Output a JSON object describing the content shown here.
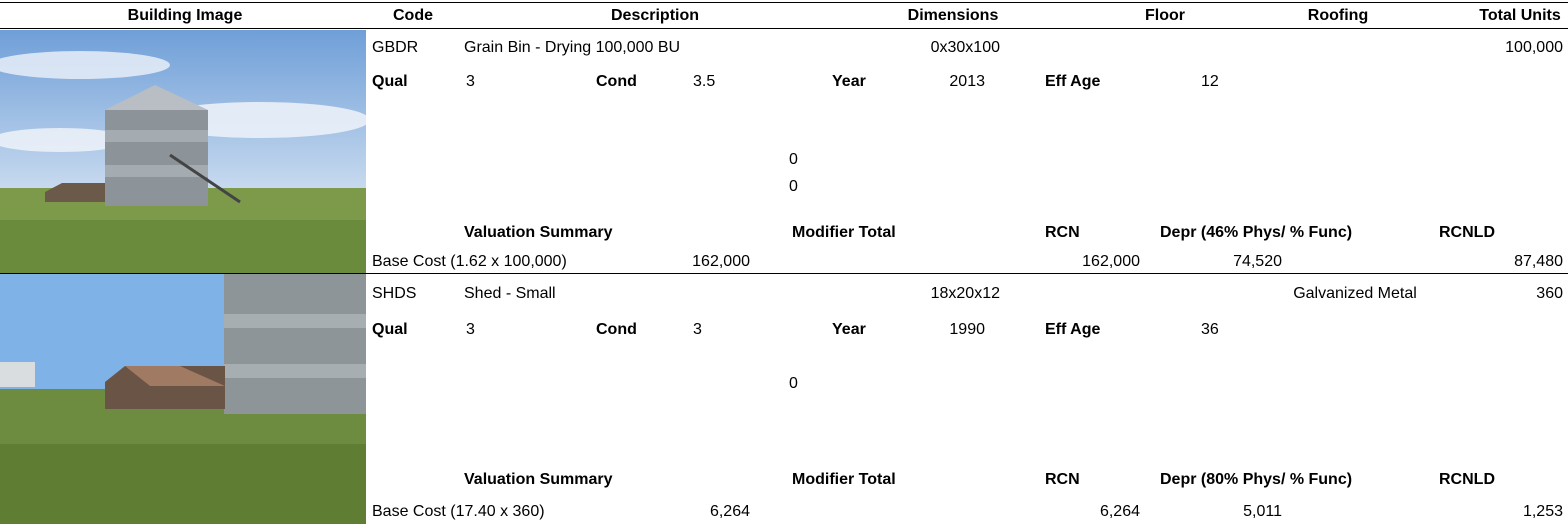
{
  "header": {
    "columns": [
      "Building Image",
      "Code",
      "Description",
      "Dimensions",
      "Floor",
      "Roofing",
      "Total Units"
    ]
  },
  "records": [
    {
      "code": "GBDR",
      "description": "Grain Bin - Drying 100,000 BU",
      "dimensions": "0x30x100",
      "total_units": "100,000",
      "qual_label": "Qual",
      "qual": "3",
      "cond_label": "Cond",
      "cond": "3.5",
      "year_label": "Year",
      "year": "2013",
      "eff_age_label": "Eff Age",
      "eff_age": "12",
      "modifiers": [
        "0",
        "0"
      ],
      "summary_label": "Valuation Summary",
      "modifier_label": "Modifier Total",
      "rcn_label": "RCN",
      "depr_label": "Depr (46% Phys/ % Func)",
      "rcnld_label": "RCNLD",
      "base_cost_label": "Base Cost (1.62 x 100,000)",
      "base_cost": "162,000",
      "rcn": "162,000",
      "depr": "74,520",
      "rcnld": "87,480"
    },
    {
      "code": "SHDS",
      "description": "Shed - Small",
      "dimensions": "18x20x12",
      "roofing": "Galvanized Metal",
      "total_units": "360",
      "qual_label": "Qual",
      "qual": "3",
      "cond_label": "Cond",
      "cond": "3",
      "year_label": "Year",
      "year": "1990",
      "eff_age_label": "Eff Age",
      "eff_age": "36",
      "modifiers": [
        "0"
      ],
      "summary_label": "Valuation Summary",
      "modifier_label": "Modifier Total",
      "rcn_label": "RCN",
      "depr_label": "Depr (80% Phys/ % Func)",
      "rcnld_label": "RCNLD",
      "base_cost_label": "Base Cost (17.40 x 360)",
      "base_cost": "6,264",
      "rcn": "6,264",
      "depr": "5,011",
      "rcnld": "1,253"
    }
  ]
}
